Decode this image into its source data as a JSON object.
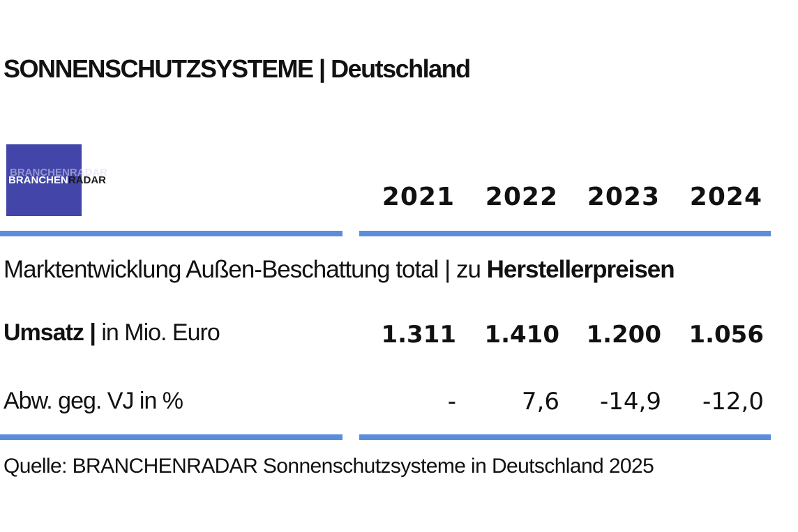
{
  "title": "SONNENSCHUTZSYSTEME | Deutschland",
  "logo": {
    "part1": "BRANCHEN",
    "part2": "RADAR",
    "ghost": "BRANCHENRADAR"
  },
  "table": {
    "years": [
      "2021",
      "2022",
      "2023",
      "2024"
    ],
    "subtitle_normal": "Marktentwicklung Außen-Beschattung total | zu",
    "subtitle_bold": "Herstellerpreisen",
    "rows": [
      {
        "label_bold": "Umsatz |",
        "label_normal": "in Mio. Euro",
        "values": [
          "1.311",
          "1.410",
          "1.200",
          "1.056"
        ]
      },
      {
        "label_bold": "",
        "label_normal": "Abw. geg. VJ in %",
        "values": [
          "-",
          "7,6",
          "-14,9",
          "-12,0"
        ]
      }
    ]
  },
  "source": "Quelle: BRANCHENRADAR Sonnenschutzsysteme in Deutschland 2025",
  "colors": {
    "rule": "#5a8ddc",
    "logo_bg": "#4346a8"
  },
  "chart_data": {
    "type": "table",
    "title": "SONNENSCHUTZSYSTEME | Deutschland",
    "subtitle": "Marktentwicklung Außen-Beschattung total | zu Herstellerpreisen",
    "columns": [
      "2021",
      "2022",
      "2023",
      "2024"
    ],
    "rows": [
      {
        "name": "Umsatz | in Mio. Euro",
        "values": [
          1311,
          1410,
          1200,
          1056
        ]
      },
      {
        "name": "Abw. geg. VJ in %",
        "values": [
          null,
          7.6,
          -14.9,
          -12.0
        ]
      }
    ]
  }
}
